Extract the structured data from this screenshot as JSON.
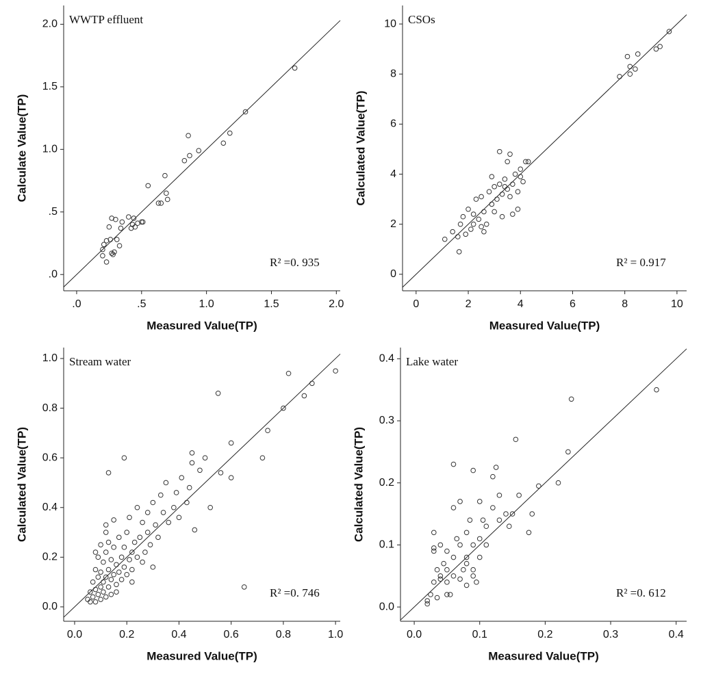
{
  "chart_data": [
    {
      "type": "scatter",
      "title": "WWTP effluent",
      "xlabel": "Measured Value(TP)",
      "ylabel": "Calculate Value(TP)",
      "annotation": "R² =0. 935",
      "color": "#333333",
      "xlim": [
        -0.1,
        2.03
      ],
      "ylim": [
        -0.13,
        2.15
      ],
      "xticks": [
        {
          "value": 0,
          "label": ".0"
        },
        {
          "value": 0.5,
          "label": ".5"
        },
        {
          "value": 1,
          "label": "1.0"
        },
        1.5,
        {
          "value": 2,
          "label": "2.0"
        }
      ],
      "yticks": [
        {
          "value": 0,
          "label": ".0"
        },
        {
          "value": 0.5,
          "label": ".5"
        },
        {
          "value": 1,
          "label": "1.0"
        },
        1.5,
        {
          "value": 2,
          "label": "2.0"
        }
      ],
      "x": [
        0.2,
        0.21,
        0.2,
        0.23,
        0.23,
        0.26,
        0.25,
        0.27,
        0.27,
        0.28,
        0.29,
        0.3,
        0.31,
        0.33,
        0.34,
        0.35,
        0.4,
        0.42,
        0.43,
        0.44,
        0.45,
        0.47,
        0.5,
        0.51,
        0.55,
        0.63,
        0.65,
        0.68,
        0.69,
        0.7,
        0.83,
        0.86,
        0.87,
        0.94,
        1.13,
        1.18,
        1.3,
        1.68
      ],
      "values": [
        0.2,
        0.24,
        0.15,
        0.1,
        0.27,
        0.28,
        0.38,
        0.45,
        0.17,
        0.16,
        0.18,
        0.44,
        0.28,
        0.23,
        0.37,
        0.42,
        0.46,
        0.37,
        0.4,
        0.45,
        0.38,
        0.41,
        0.42,
        0.42,
        0.71,
        0.57,
        0.57,
        0.79,
        0.65,
        0.6,
        0.91,
        1.11,
        0.95,
        0.99,
        1.05,
        1.13,
        1.3,
        1.65
      ]
    },
    {
      "type": "scatter",
      "title": "CSOs",
      "xlabel": "Measured Value(TP)",
      "ylabel": "Calculated Value(TP)",
      "annotation": "R² = 0.917",
      "color": "#333333",
      "xlim": [
        -0.52,
        10.37
      ],
      "ylim": [
        -0.66,
        10.74
      ],
      "xticks": [
        0,
        2,
        4,
        6,
        8,
        10
      ],
      "yticks": [
        0,
        2,
        4,
        6,
        8,
        10
      ],
      "x": [
        1.1,
        1.4,
        1.6,
        1.65,
        1.7,
        1.8,
        1.9,
        2.0,
        2.1,
        2.2,
        2.3,
        2.4,
        2.5,
        2.5,
        2.6,
        2.7,
        2.8,
        2.9,
        2.9,
        3.0,
        3.0,
        3.1,
        3.2,
        3.2,
        3.3,
        3.3,
        3.4,
        3.5,
        3.5,
        3.6,
        3.6,
        3.7,
        3.7,
        3.8,
        3.9,
        3.9,
        4.0,
        4.0,
        4.1,
        4.2,
        4.3,
        2.2,
        2.6,
        3.4,
        7.8,
        8.1,
        8.2,
        8.2,
        8.4,
        8.5,
        9.2,
        9.35,
        9.7
      ],
      "values": [
        1.4,
        1.7,
        1.5,
        0.9,
        2.0,
        2.3,
        1.6,
        2.6,
        1.8,
        2.0,
        3.0,
        2.2,
        1.9,
        3.1,
        2.5,
        2.0,
        3.3,
        2.8,
        3.9,
        2.5,
        3.5,
        3.0,
        4.9,
        3.6,
        3.2,
        2.3,
        3.8,
        3.4,
        4.5,
        3.1,
        4.8,
        3.6,
        2.4,
        4.0,
        3.3,
        2.6,
        3.9,
        4.2,
        3.7,
        4.5,
        4.5,
        2.4,
        1.7,
        3.5,
        7.9,
        8.7,
        8.0,
        8.3,
        8.2,
        8.8,
        9.0,
        9.1,
        9.7
      ]
    },
    {
      "type": "scatter",
      "title": "Stream water",
      "xlabel": "Measured Value(TP)",
      "ylabel": "Calculated Value(TP)",
      "annotation": "R² =0. 746",
      "color": "#333333",
      "xlim": [
        -0.042,
        1.018
      ],
      "ylim": [
        -0.058,
        1.044
      ],
      "xticks": [
        {
          "value": 0,
          "label": "0.0"
        },
        0.2,
        0.4,
        0.6,
        0.8,
        {
          "value": 1,
          "label": "1.0"
        }
      ],
      "yticks": [
        {
          "value": 0,
          "label": "0.0"
        },
        0.2,
        0.4,
        0.6,
        0.8,
        {
          "value": 1,
          "label": "1.0"
        }
      ],
      "x": [
        0.05,
        0.06,
        0.06,
        0.07,
        0.07,
        0.08,
        0.08,
        0.08,
        0.09,
        0.09,
        0.09,
        0.1,
        0.1,
        0.1,
        0.1,
        0.11,
        0.11,
        0.11,
        0.12,
        0.12,
        0.12,
        0.12,
        0.13,
        0.13,
        0.13,
        0.14,
        0.14,
        0.14,
        0.15,
        0.15,
        0.15,
        0.16,
        0.16,
        0.17,
        0.17,
        0.18,
        0.18,
        0.19,
        0.19,
        0.2,
        0.2,
        0.21,
        0.21,
        0.22,
        0.22,
        0.23,
        0.24,
        0.24,
        0.25,
        0.26,
        0.27,
        0.28,
        0.28,
        0.29,
        0.3,
        0.31,
        0.32,
        0.33,
        0.34,
        0.35,
        0.36,
        0.38,
        0.39,
        0.4,
        0.41,
        0.43,
        0.44,
        0.45,
        0.46,
        0.48,
        0.5,
        0.52,
        0.55,
        0.56,
        0.6,
        0.6,
        0.65,
        0.72,
        0.74,
        0.8,
        0.82,
        0.88,
        0.91,
        1.0,
        0.13,
        0.19,
        0.45,
        0.22,
        0.12,
        0.08,
        0.16,
        0.3,
        0.26
      ],
      "values": [
        0.03,
        0.06,
        0.02,
        0.1,
        0.04,
        0.15,
        0.07,
        0.02,
        0.12,
        0.05,
        0.2,
        0.08,
        0.14,
        0.03,
        0.25,
        0.1,
        0.18,
        0.06,
        0.12,
        0.22,
        0.04,
        0.3,
        0.15,
        0.08,
        0.26,
        0.11,
        0.19,
        0.05,
        0.13,
        0.24,
        0.35,
        0.09,
        0.17,
        0.14,
        0.28,
        0.2,
        0.11,
        0.16,
        0.24,
        0.13,
        0.3,
        0.19,
        0.36,
        0.22,
        0.15,
        0.26,
        0.2,
        0.4,
        0.28,
        0.34,
        0.22,
        0.3,
        0.38,
        0.25,
        0.42,
        0.33,
        0.28,
        0.45,
        0.38,
        0.5,
        0.34,
        0.4,
        0.46,
        0.36,
        0.52,
        0.42,
        0.48,
        0.62,
        0.31,
        0.55,
        0.6,
        0.4,
        0.86,
        0.54,
        0.66,
        0.52,
        0.08,
        0.6,
        0.71,
        0.8,
        0.94,
        0.85,
        0.9,
        0.95,
        0.54,
        0.6,
        0.58,
        0.1,
        0.33,
        0.22,
        0.06,
        0.16,
        0.18
      ]
    },
    {
      "type": "scatter",
      "title": "Lake water",
      "xlabel": "Measured Value(TP)",
      "ylabel": "Calculated Value(TP)",
      "annotation": "R² =0. 612",
      "color": "#333333",
      "xlim": [
        -0.021,
        0.416
      ],
      "ylim": [
        -0.023,
        0.418
      ],
      "xticks": [
        {
          "value": 0,
          "label": "0.0"
        },
        0.1,
        0.2,
        0.3,
        0.4
      ],
      "yticks": [
        {
          "value": 0,
          "label": "0.0"
        },
        0.1,
        0.2,
        0.3,
        0.4
      ],
      "x": [
        0.02,
        0.02,
        0.025,
        0.03,
        0.03,
        0.03,
        0.035,
        0.035,
        0.04,
        0.04,
        0.04,
        0.045,
        0.05,
        0.05,
        0.05,
        0.055,
        0.06,
        0.06,
        0.06,
        0.065,
        0.07,
        0.07,
        0.07,
        0.075,
        0.08,
        0.08,
        0.08,
        0.085,
        0.09,
        0.09,
        0.09,
        0.095,
        0.1,
        0.1,
        0.1,
        0.105,
        0.11,
        0.11,
        0.12,
        0.12,
        0.125,
        0.13,
        0.13,
        0.14,
        0.145,
        0.15,
        0.155,
        0.16,
        0.175,
        0.18,
        0.19,
        0.22,
        0.235,
        0.24,
        0.37,
        0.06,
        0.09,
        0.05,
        0.03,
        0.08
      ],
      "values": [
        0.01,
        0.005,
        0.02,
        0.04,
        0.09,
        0.12,
        0.06,
        0.015,
        0.05,
        0.1,
        0.045,
        0.07,
        0.04,
        0.06,
        0.09,
        0.02,
        0.05,
        0.08,
        0.16,
        0.11,
        0.045,
        0.1,
        0.17,
        0.06,
        0.12,
        0.08,
        0.035,
        0.14,
        0.06,
        0.1,
        0.22,
        0.04,
        0.17,
        0.11,
        0.08,
        0.14,
        0.13,
        0.1,
        0.16,
        0.21,
        0.225,
        0.14,
        0.18,
        0.15,
        0.13,
        0.15,
        0.27,
        0.18,
        0.12,
        0.15,
        0.195,
        0.2,
        0.25,
        0.335,
        0.35,
        0.23,
        0.05,
        0.02,
        0.095,
        0.07
      ]
    }
  ]
}
